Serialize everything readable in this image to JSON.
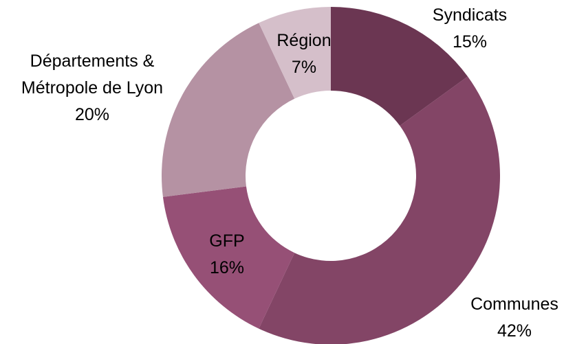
{
  "chart_data": {
    "type": "donut",
    "categories": [
      "Syndicats",
      "Communes",
      "GFP",
      "Départements & Métropole de Lyon",
      "Région"
    ],
    "values": [
      15,
      42,
      16,
      20,
      7
    ],
    "value_labels": [
      "15%",
      "42%",
      "16%",
      "20%",
      "7%"
    ],
    "colors": [
      "#6b3652",
      "#834566",
      "#965076",
      "#b592a3",
      "#d5bfca"
    ]
  }
}
